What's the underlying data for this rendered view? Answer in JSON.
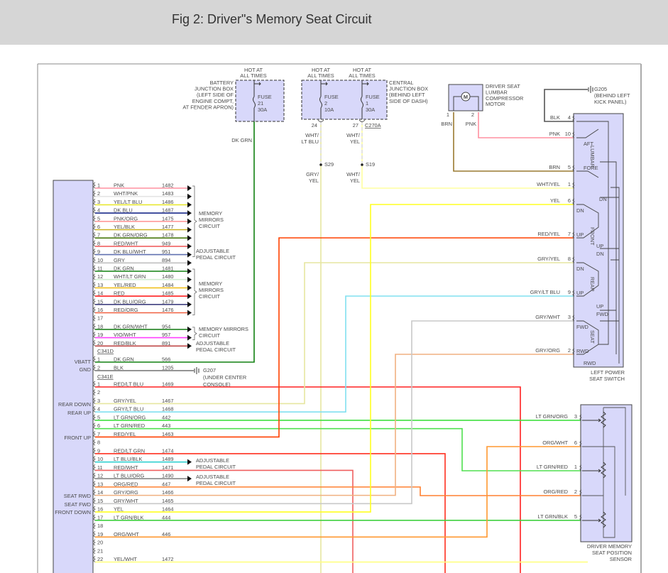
{
  "header": {
    "title": "Fig 2: Driver\"s Memory Seat Circuit"
  },
  "fuses": {
    "battery_box": {
      "hot": [
        "HOT AT",
        "ALL TIMES"
      ],
      "label": [
        "BATTERY",
        "JUNCTION BOX",
        "(LEFT SIDE OF",
        "ENGINE COMPT,",
        "AT FENDER APRON)"
      ],
      "fuse": [
        "FUSE",
        "21",
        "30A"
      ],
      "wire": "DK GRN"
    },
    "central_box": {
      "label": [
        "CENTRAL",
        "JUNCTION BOX",
        "(BEHIND LEFT",
        "SIDE OF DASH)"
      ],
      "connector": "C270A",
      "fuses": [
        {
          "hot": [
            "HOT AT",
            "ALL TIMES"
          ],
          "fuse": [
            "FUSE",
            "2",
            "10A"
          ],
          "pin": "24",
          "wire": [
            "WHT/",
            "LT BLU"
          ],
          "splice": "S29",
          "wire_after": [
            "GRY/",
            "YEL"
          ]
        },
        {
          "hot": [
            "HOT AT",
            "ALL TIMES"
          ],
          "fuse": [
            "FUSE",
            "1",
            "30A"
          ],
          "pin": "27",
          "wire": [
            "WHT/",
            "YEL"
          ],
          "splice": "S19",
          "wire_after": [
            "WHT/",
            "YEL"
          ]
        }
      ]
    }
  },
  "lumbar_motor": {
    "label": [
      "DRIVER SEAT",
      "LUMBAR",
      "COMPRESSOR",
      "MOTOR"
    ],
    "symbol": "M",
    "pins": [
      {
        "pin": "1",
        "wire": "BRN"
      },
      {
        "pin": "2",
        "wire": "PNK"
      }
    ]
  },
  "ground_g205": {
    "label": [
      "G205",
      "(BEHIND LEFT",
      "KICK PANEL)"
    ]
  },
  "ground_g207": {
    "label": [
      "G207",
      "(UNDER CENTER",
      "CONSOLE)"
    ]
  },
  "module": {
    "side_labels": [
      "VBATT",
      "GND",
      "REAR DOWN",
      "REAR UP",
      "FRONT UP",
      "SEAT RWD",
      "SEAT FWD",
      "FRONT DOWN"
    ],
    "c341d": {
      "name": "C341D",
      "pins": [
        {
          "pin": "1",
          "color": "PNK",
          "circuit": "1482"
        },
        {
          "pin": "2",
          "color": "WHT/PNK",
          "circuit": "1483"
        },
        {
          "pin": "3",
          "color": "YEL/LT BLU",
          "circuit": "1486"
        },
        {
          "pin": "4",
          "color": "DK BLU",
          "circuit": "1487"
        },
        {
          "pin": "5",
          "color": "PNK/ORG",
          "circuit": "1475"
        },
        {
          "pin": "6",
          "color": "YEL/BLK",
          "circuit": "1477"
        },
        {
          "pin": "7",
          "color": "DK GRN/ORG",
          "circuit": "1478"
        },
        {
          "pin": "8",
          "color": "RED/WHT",
          "circuit": "949"
        },
        {
          "pin": "9",
          "color": "DK BLU/WHT",
          "circuit": "951"
        },
        {
          "pin": "10",
          "color": "GRY",
          "circuit": "894"
        },
        {
          "pin": "11",
          "color": "DK GRN",
          "circuit": "1481"
        },
        {
          "pin": "12",
          "color": "WHT/LT GRN",
          "circuit": "1480"
        },
        {
          "pin": "13",
          "color": "YEL/RED",
          "circuit": "1484"
        },
        {
          "pin": "14",
          "color": "RED",
          "circuit": "1485"
        },
        {
          "pin": "15",
          "color": "DK BLU/ORG",
          "circuit": "1479"
        },
        {
          "pin": "16",
          "color": "RED/ORG",
          "circuit": "1476"
        },
        {
          "pin": "17",
          "color": "",
          "circuit": ""
        },
        {
          "pin": "18",
          "color": "DK GRN/WHT",
          "circuit": "954"
        },
        {
          "pin": "19",
          "color": "VIO/WHT",
          "circuit": "957"
        },
        {
          "pin": "20",
          "color": "RED/BLK",
          "circuit": "891"
        }
      ]
    },
    "c341d_groups": [
      [
        "MEMORY",
        "MIRRORS",
        "CIRCUIT"
      ],
      [
        "ADJUSTABLE",
        "PEDAL CIRCUIT"
      ],
      [
        "MEMORY",
        "MIRRORS",
        "CIRCUIT"
      ],
      [
        "MEMORY MIRRORS",
        "CIRCUIT"
      ],
      [
        "ADJUSTABLE",
        "PEDAL CIRCUIT"
      ]
    ],
    "c341e": {
      "name": "C341E",
      "pins": [
        {
          "pin": "1",
          "color": "DK GRN",
          "circuit": "566"
        },
        {
          "pin": "2",
          "color": "BLK",
          "circuit": "1205"
        }
      ]
    },
    "lower": {
      "pins": [
        {
          "pin": "1",
          "color": "RED/LT BLU",
          "circuit": "1469"
        },
        {
          "pin": "2",
          "color": "",
          "circuit": ""
        },
        {
          "pin": "3",
          "color": "GRY/YEL",
          "circuit": "1467"
        },
        {
          "pin": "4",
          "color": "GRY/LT BLU",
          "circuit": "1468"
        },
        {
          "pin": "5",
          "color": "LT GRN/ORG",
          "circuit": "442"
        },
        {
          "pin": "6",
          "color": "LT GRN/RED",
          "circuit": "443"
        },
        {
          "pin": "7",
          "color": "RED/YEL",
          "circuit": "1463"
        },
        {
          "pin": "8",
          "color": "",
          "circuit": ""
        },
        {
          "pin": "9",
          "color": "RED/LT GRN",
          "circuit": "1474"
        },
        {
          "pin": "10",
          "color": "LT BLU/BLK",
          "circuit": "1489"
        },
        {
          "pin": "11",
          "color": "RED/WHT",
          "circuit": "1471"
        },
        {
          "pin": "12",
          "color": "LT BLU/ORG",
          "circuit": "1490"
        },
        {
          "pin": "13",
          "color": "ORG/RED",
          "circuit": "447"
        },
        {
          "pin": "14",
          "color": "GRY/ORG",
          "circuit": "1466"
        },
        {
          "pin": "15",
          "color": "GRY/WHT",
          "circuit": "1465"
        },
        {
          "pin": "16",
          "color": "YEL",
          "circuit": "1464"
        },
        {
          "pin": "17",
          "color": "LT GRN/BLK",
          "circuit": "444"
        },
        {
          "pin": "18",
          "color": "",
          "circuit": ""
        },
        {
          "pin": "19",
          "color": "ORG/WHT",
          "circuit": "446"
        },
        {
          "pin": "20",
          "color": "",
          "circuit": ""
        },
        {
          "pin": "21",
          "color": "",
          "circuit": ""
        },
        {
          "pin": "22",
          "color": "YEL/WHT",
          "circuit": "1472"
        }
      ]
    },
    "lower_groups": [
      [
        "ADJUSTABLE",
        "PEDAL CIRCUIT"
      ],
      [
        "ADJUSTABLE",
        "PEDAL CIRCUIT"
      ]
    ]
  },
  "seat_switch": {
    "label": [
      "LEFT POWER",
      "SEAT SWITCH"
    ],
    "pins": [
      {
        "pin": "4",
        "wire": "BLK"
      },
      {
        "pin": "10",
        "wire": "PNK"
      },
      {
        "pin": "5",
        "wire": "BRN"
      },
      {
        "pin": "1",
        "wire": "WHT/YEL"
      },
      {
        "pin": "6",
        "wire": "YEL"
      },
      {
        "pin": "7",
        "wire": "RED/YEL"
      },
      {
        "pin": "8",
        "wire": "GRY/YEL"
      },
      {
        "pin": "9",
        "wire": "GRY/LT BLU"
      },
      {
        "pin": "3",
        "wire": "GRY/WHT"
      },
      {
        "pin": "2",
        "wire": "GRY/ORG"
      }
    ],
    "internal_labels": [
      "AFT",
      "FORE",
      "LUMBAR",
      "DN",
      "DN",
      "FRONT",
      "UP",
      "UP",
      "DN",
      "DN",
      "REAR",
      "UP",
      "UP",
      "FWD",
      "FWD",
      "SEAT",
      "RWD",
      "RWD"
    ]
  },
  "position_sensor": {
    "label": [
      "DRIVER MEMORY",
      "SEAT POSITION",
      "SENSOR"
    ],
    "pins": [
      {
        "pin": "3",
        "wire": "LT GRN/ORG"
      },
      {
        "pin": "6",
        "wire": "ORG/WHT"
      },
      {
        "pin": "1",
        "wire": "LT GRN/RED"
      },
      {
        "pin": "2",
        "wire": "ORG/RED"
      },
      {
        "pin": "5",
        "wire": "LT GRN/BLK"
      }
    ]
  },
  "wire_colors": {
    "PNK": "#ff90a0",
    "WHT/PNK": "#e4e4e4",
    "YEL/LT BLU": "#e8e830",
    "DK BLU": "#1a2a8a",
    "PNK/ORG": "#ff9a9a",
    "YEL/BLK": "#c8b020",
    "DK GRN/ORG": "#4a7a10",
    "RED/WHT": "#f06060",
    "DK BLU/WHT": "#6070b0",
    "GRY": "#c0c0c0",
    "DK GRN": "#108010",
    "WHT/LT GRN": "#d0ecd0",
    "YEL/RED": "#f0c020",
    "RED": "#ff2020",
    "DK BLU/ORG": "#404080",
    "RED/ORG": "#f06040",
    "DK GRN/WHT": "#208020",
    "VIO/WHT": "#ff40ff",
    "RED/BLK": "#c04848",
    "BLK": "#555555",
    "RED/LT BLU": "#ff2020",
    "GRY/YEL": "#e6e6a0",
    "GRY/LT BLU": "#80e0f0",
    "LT GRN/ORG": "#40e040",
    "LT GRN/RED": "#50e050",
    "RED/YEL": "#ff4000",
    "RED/LT GRN": "#ff3020",
    "LT BLU/BLK": "#30d0d0",
    "ORG/RED": "#ff8030",
    "GRY/ORG": "#f0b080",
    "GRY/WHT": "#c8c8c8",
    "YEL": "#ffff20",
    "LT GRN/BLK": "#40d040",
    "ORG/WHT": "#ff9830",
    "YEL/WHT": "#ffff80",
    "BRN": "#9a7a30",
    "WHT/YEL": "#ffffa0"
  },
  "component_fill": "#d8d8fa"
}
